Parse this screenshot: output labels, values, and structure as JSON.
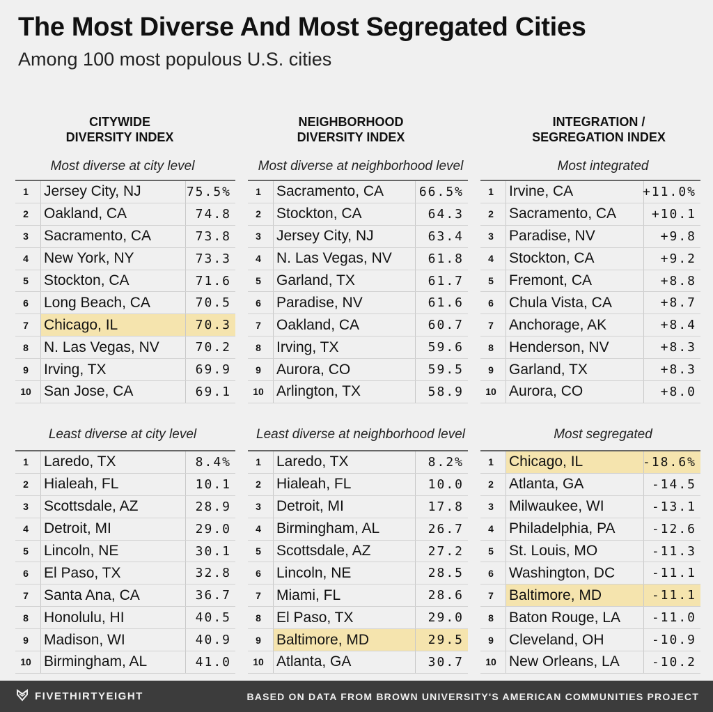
{
  "title": "The Most Diverse And Most Segregated Cities",
  "subtitle": "Among 100 most populous U.S. cities",
  "columns": [
    {
      "header_line1": "CITYWIDE",
      "header_line2": "DIVERSITY INDEX",
      "top_label": "Most diverse at city level",
      "top": [
        {
          "rank": "1",
          "city": "Jersey City, NJ",
          "value": "75.5%"
        },
        {
          "rank": "2",
          "city": "Oakland, CA",
          "value": "74.8"
        },
        {
          "rank": "3",
          "city": "Sacramento, CA",
          "value": "73.8"
        },
        {
          "rank": "4",
          "city": "New York, NY",
          "value": "73.3"
        },
        {
          "rank": "5",
          "city": "Stockton, CA",
          "value": "71.6"
        },
        {
          "rank": "6",
          "city": "Long Beach, CA",
          "value": "70.5"
        },
        {
          "rank": "7",
          "city": "Chicago, IL",
          "value": "70.3",
          "highlight": true
        },
        {
          "rank": "8",
          "city": "N. Las Vegas, NV",
          "value": "70.2"
        },
        {
          "rank": "9",
          "city": "Irving, TX",
          "value": "69.9"
        },
        {
          "rank": "10",
          "city": "San Jose, CA",
          "value": "69.1"
        }
      ],
      "bottom_label": "Least diverse at city level",
      "bottom": [
        {
          "rank": "1",
          "city": "Laredo, TX",
          "value": "8.4%"
        },
        {
          "rank": "2",
          "city": "Hialeah, FL",
          "value": "10.1"
        },
        {
          "rank": "3",
          "city": "Scottsdale, AZ",
          "value": "28.9"
        },
        {
          "rank": "4",
          "city": "Detroit, MI",
          "value": "29.0"
        },
        {
          "rank": "5",
          "city": "Lincoln, NE",
          "value": "30.1"
        },
        {
          "rank": "6",
          "city": "El Paso, TX",
          "value": "32.8"
        },
        {
          "rank": "7",
          "city": "Santa Ana, CA",
          "value": "36.7"
        },
        {
          "rank": "8",
          "city": "Honolulu, HI",
          "value": "40.5"
        },
        {
          "rank": "9",
          "city": "Madison, WI",
          "value": "40.9"
        },
        {
          "rank": "10",
          "city": "Birmingham, AL",
          "value": "41.0"
        }
      ]
    },
    {
      "header_line1": "NEIGHBORHOOD",
      "header_line2": "DIVERSITY INDEX",
      "top_label": "Most diverse at neighborhood level",
      "top": [
        {
          "rank": "1",
          "city": "Sacramento, CA",
          "value": "66.5%"
        },
        {
          "rank": "2",
          "city": "Stockton, CA",
          "value": "64.3"
        },
        {
          "rank": "3",
          "city": "Jersey City, NJ",
          "value": "63.4"
        },
        {
          "rank": "4",
          "city": "N. Las Vegas, NV",
          "value": "61.8"
        },
        {
          "rank": "5",
          "city": "Garland, TX",
          "value": "61.7"
        },
        {
          "rank": "6",
          "city": "Paradise, NV",
          "value": "61.6"
        },
        {
          "rank": "7",
          "city": "Oakland, CA",
          "value": "60.7"
        },
        {
          "rank": "8",
          "city": "Irving, TX",
          "value": "59.6"
        },
        {
          "rank": "9",
          "city": "Aurora, CO",
          "value": "59.5"
        },
        {
          "rank": "10",
          "city": "Arlington, TX",
          "value": "58.9"
        }
      ],
      "bottom_label": "Least diverse at neighborhood level",
      "bottom": [
        {
          "rank": "1",
          "city": "Laredo, TX",
          "value": "8.2%"
        },
        {
          "rank": "2",
          "city": "Hialeah, FL",
          "value": "10.0"
        },
        {
          "rank": "3",
          "city": "Detroit, MI",
          "value": "17.8"
        },
        {
          "rank": "4",
          "city": "Birmingham, AL",
          "value": "26.7"
        },
        {
          "rank": "5",
          "city": "Scottsdale, AZ",
          "value": "27.2"
        },
        {
          "rank": "6",
          "city": "Lincoln, NE",
          "value": "28.5"
        },
        {
          "rank": "7",
          "city": "Miami, FL",
          "value": "28.6"
        },
        {
          "rank": "8",
          "city": "El Paso, TX",
          "value": "29.0"
        },
        {
          "rank": "9",
          "city": "Baltimore, MD",
          "value": "29.5",
          "highlight": true
        },
        {
          "rank": "10",
          "city": "Atlanta, GA",
          "value": "30.7"
        }
      ]
    },
    {
      "header_line1": "INTEGRATION /",
      "header_line2": "SEGREGATION INDEX",
      "top_label": "Most integrated",
      "top": [
        {
          "rank": "1",
          "city": "Irvine, CA",
          "value": "+11.0%"
        },
        {
          "rank": "2",
          "city": "Sacramento, CA",
          "value": "+10.1"
        },
        {
          "rank": "3",
          "city": "Paradise, NV",
          "value": "+9.8"
        },
        {
          "rank": "4",
          "city": "Stockton, CA",
          "value": "+9.2"
        },
        {
          "rank": "5",
          "city": "Fremont, CA",
          "value": "+8.8"
        },
        {
          "rank": "6",
          "city": "Chula Vista, CA",
          "value": "+8.7"
        },
        {
          "rank": "7",
          "city": "Anchorage, AK",
          "value": "+8.4"
        },
        {
          "rank": "8",
          "city": "Henderson, NV",
          "value": "+8.3"
        },
        {
          "rank": "9",
          "city": "Garland, TX",
          "value": "+8.3"
        },
        {
          "rank": "10",
          "city": "Aurora, CO",
          "value": "+8.0"
        }
      ],
      "bottom_label": "Most segregated",
      "bottom": [
        {
          "rank": "1",
          "city": "Chicago, IL",
          "value": "-18.6%",
          "highlight": true
        },
        {
          "rank": "2",
          "city": "Atlanta, GA",
          "value": "-14.5"
        },
        {
          "rank": "3",
          "city": "Milwaukee, WI",
          "value": "-13.1"
        },
        {
          "rank": "4",
          "city": "Philadelphia, PA",
          "value": "-12.6"
        },
        {
          "rank": "5",
          "city": "St. Louis, MO",
          "value": "-11.3"
        },
        {
          "rank": "6",
          "city": "Washington, DC",
          "value": "-11.1"
        },
        {
          "rank": "7",
          "city": "Baltimore, MD",
          "value": "-11.1",
          "highlight": true
        },
        {
          "rank": "8",
          "city": "Baton Rouge, LA",
          "value": "-11.0"
        },
        {
          "rank": "9",
          "city": "Cleveland, OH",
          "value": "-10.9"
        },
        {
          "rank": "10",
          "city": "New Orleans, LA",
          "value": "-10.2"
        }
      ]
    }
  ],
  "footer": {
    "brand": "FIVETHIRTYEIGHT",
    "brand_icon": "fivethirtyeight-logo-icon",
    "source": "BASED ON DATA FROM BROWN UNIVERSITY'S AMERICAN COMMUNITIES PROJECT"
  },
  "colors": {
    "background": "#f0f0f0",
    "highlight": "#f5e4ae",
    "footer_bg": "#3c3c3c"
  }
}
